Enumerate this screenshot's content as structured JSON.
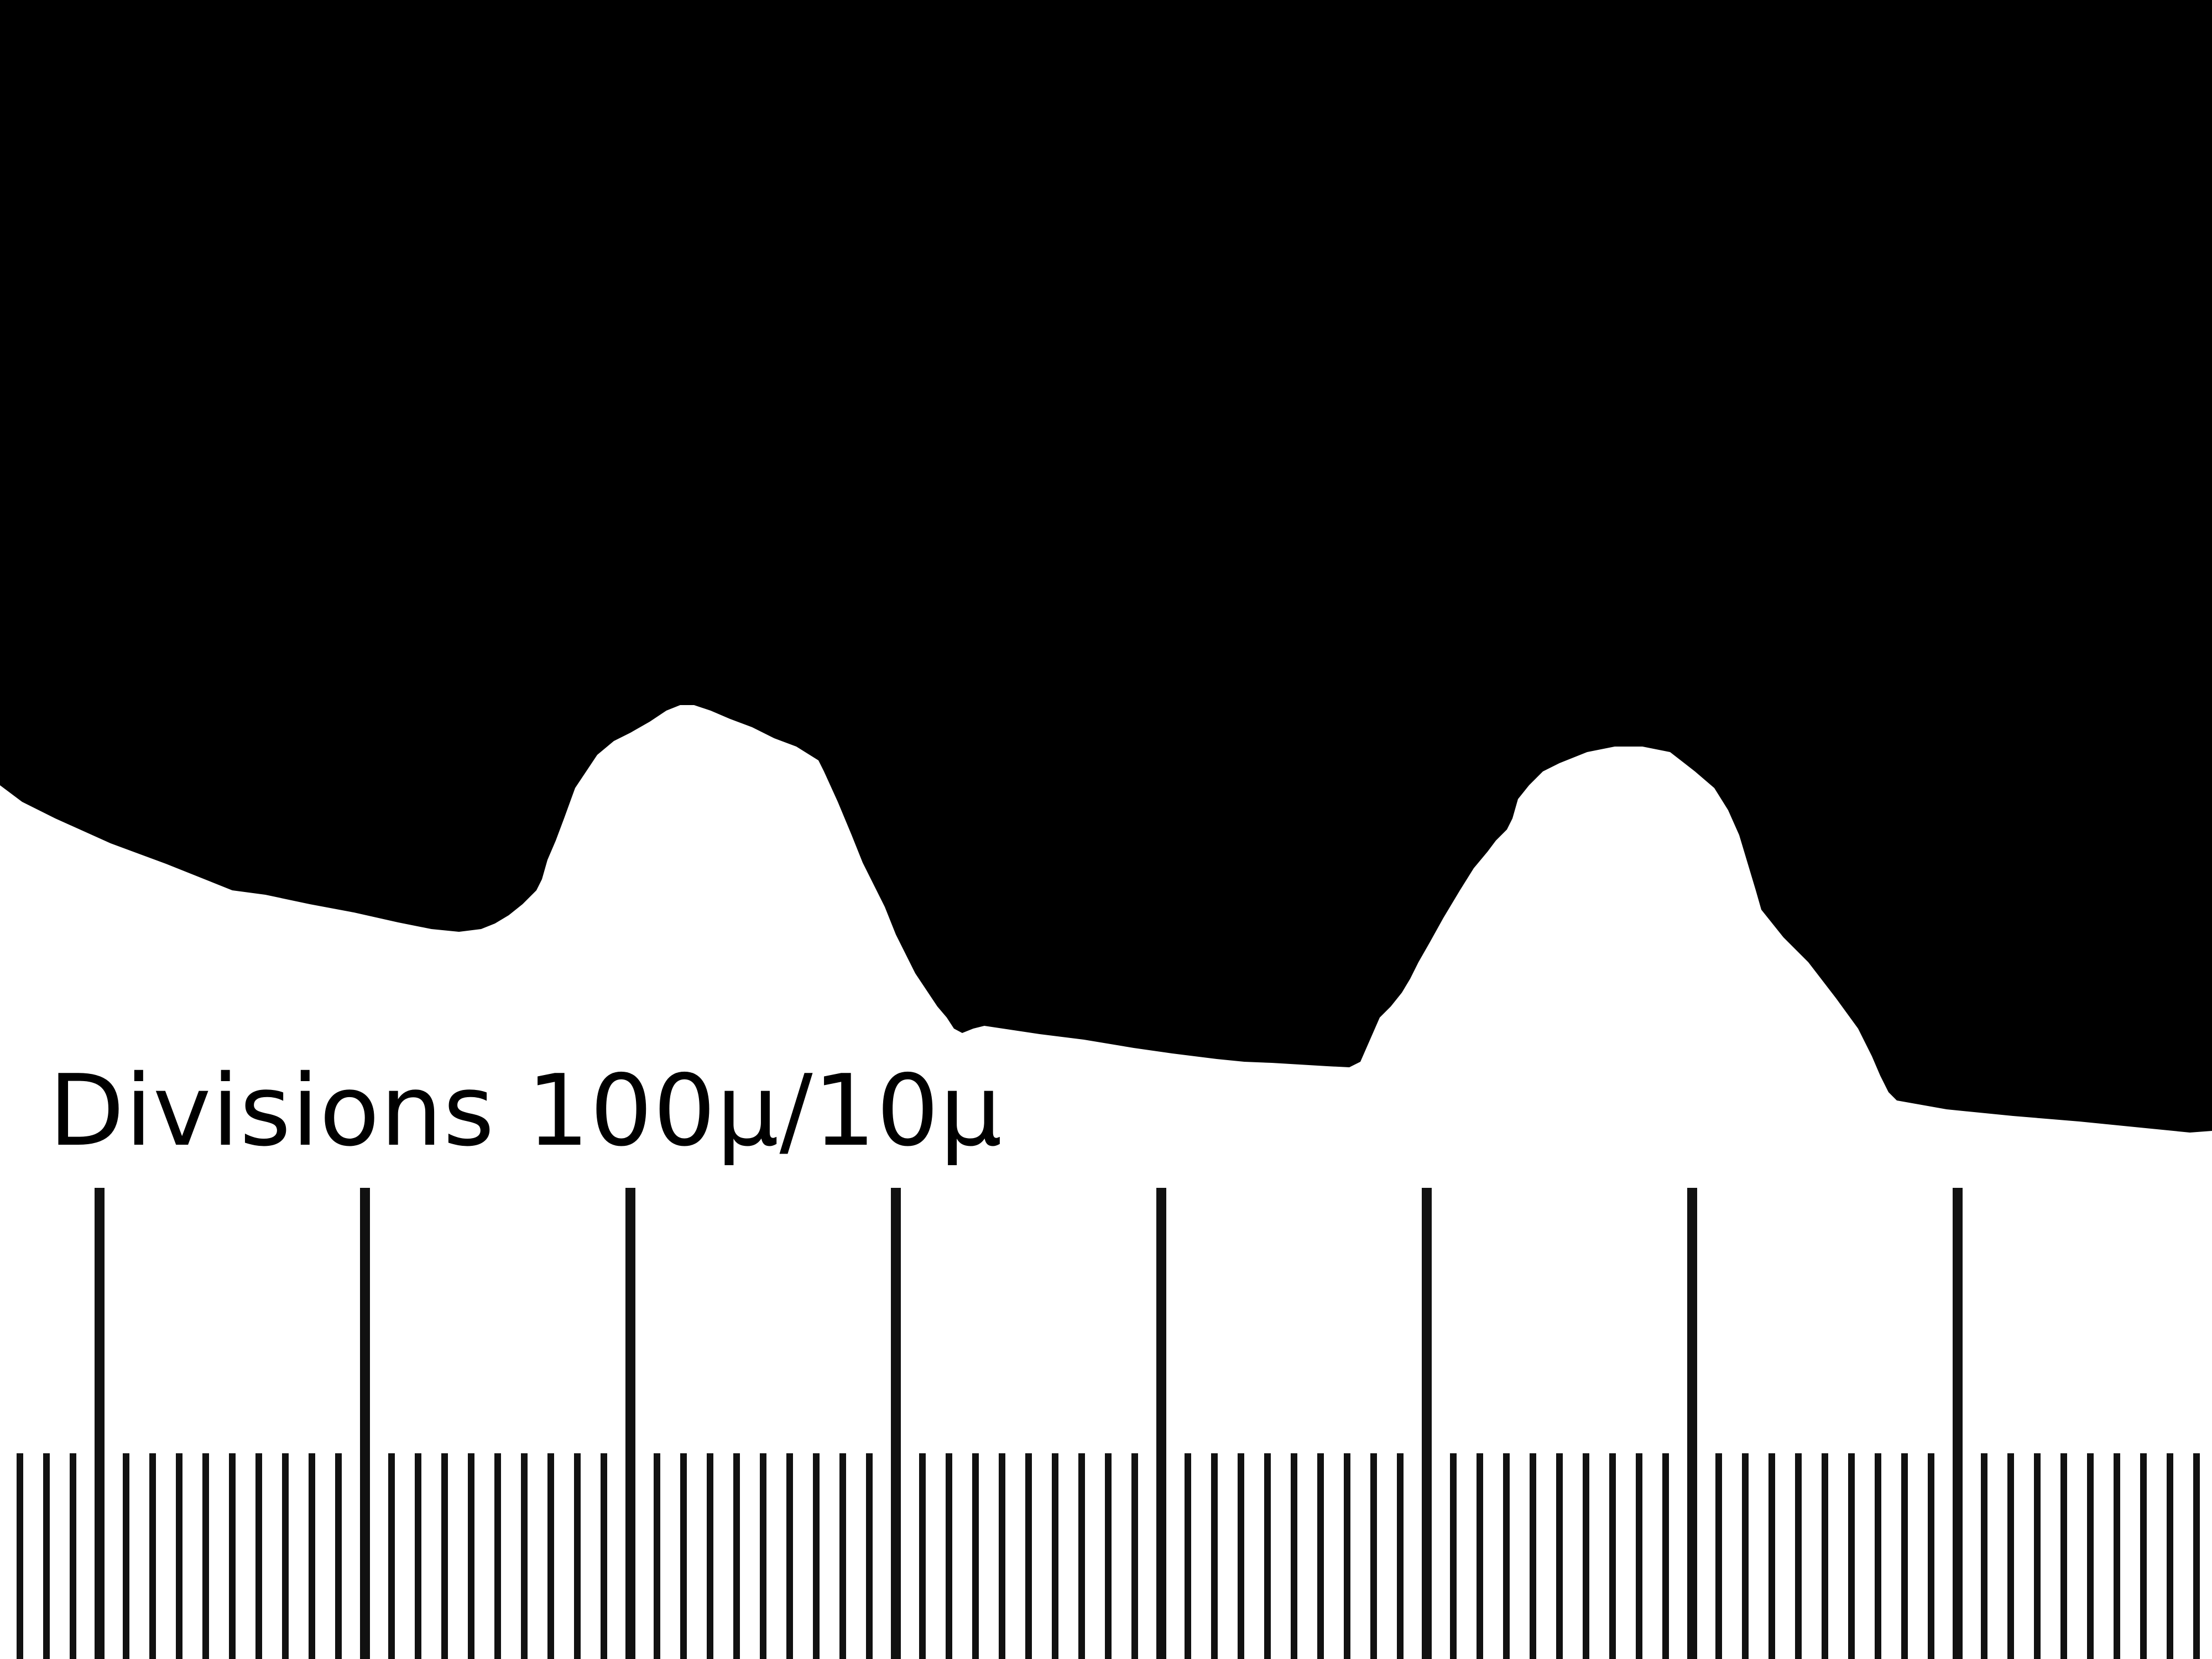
{
  "caption": "Divisions 100µ/10µ",
  "scale": {
    "major_division_um": 100,
    "minor_division_um": 10,
    "minor_per_major": 10
  },
  "colors": {
    "background": "#ffffff",
    "specimen": "#000000",
    "ticks": "#111111"
  }
}
